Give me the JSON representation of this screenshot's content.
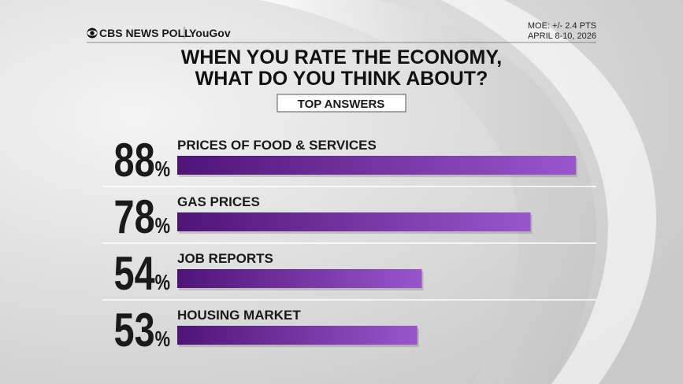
{
  "chart_data": {
    "type": "bar",
    "orientation": "horizontal",
    "brand": "CBS NEWS POLL",
    "partner": "YouGov",
    "moe": "MOE: +/- 2.4 PTS",
    "dates": "APRIL 8-10, 2026",
    "title": "WHEN YOU RATE THE ECONOMY, WHAT DO YOU THINK ABOUT?",
    "subtitle": "TOP ANSWERS",
    "categories": [
      "PRICES OF FOOD & SERVICES",
      "GAS PRICES",
      "JOB REPORTS",
      "HOUSING MARKET"
    ],
    "values": [
      88,
      78,
      54,
      53
    ],
    "value_labels": [
      "88%",
      "78%",
      "54%",
      "53%"
    ],
    "color": "#8b45c0"
  }
}
